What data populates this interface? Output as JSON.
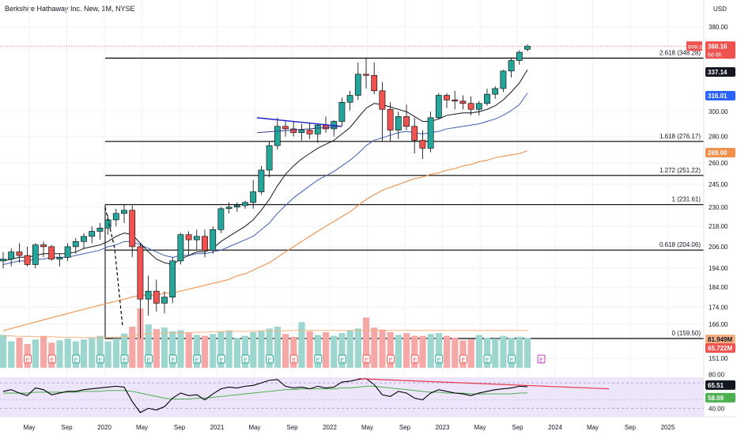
{
  "header": {
    "title": "Berkshire Hathaway Inc. New, 1M, NYSE",
    "currency": "USD"
  },
  "colors": {
    "up": "#26a69a",
    "down": "#ef5350",
    "ema_short": "#131722",
    "ema_mid": "#3f5fb5",
    "ema_long": "#f0904a",
    "fib": "#000000",
    "trend_upper": "#1e1ecc",
    "rsi": "#000000",
    "rsi_ma": "#4caf50",
    "divergence": "#e53950"
  },
  "price_axis": {
    "ticks": [
      "380.00",
      "300.00",
      "280.00",
      "260.00",
      "245.00",
      "230.00",
      "218.00",
      "206.00",
      "194.00",
      "184.00",
      "174.00",
      "166.00",
      "151.00"
    ],
    "tags": [
      {
        "label": "BRK.B",
        "value": "360.16",
        "sub": "6d 6h",
        "kind": "last"
      },
      {
        "value": "337.14",
        "kind": "ema_short"
      },
      {
        "value": "316.01",
        "kind": "ema_mid"
      },
      {
        "value": "269.00",
        "kind": "ema_long"
      },
      {
        "value": "81.949M",
        "kind": "vol_ma"
      },
      {
        "value": "65.722M",
        "kind": "vol"
      }
    ]
  },
  "rsi_axis": {
    "ticks": [
      "80.00",
      "40.00"
    ],
    "tags": [
      {
        "value": "65.51",
        "kind": "rsi"
      },
      {
        "value": "58.09",
        "kind": "rsi_ma"
      }
    ]
  },
  "time_axis": {
    "labels": [
      "May",
      "Sep",
      "2020",
      "May",
      "Sep",
      "2021",
      "May",
      "Sep",
      "2022",
      "May",
      "Sep",
      "2023",
      "May",
      "Sep",
      "2024",
      "May",
      "Sep",
      "2025"
    ]
  },
  "chart_data": {
    "type": "candlestick",
    "interval": "1M",
    "symbol": "BRK.B",
    "candles": [
      [
        198,
        203,
        194,
        199
      ],
      [
        199,
        205,
        195,
        203
      ],
      [
        203,
        208,
        197,
        201
      ],
      [
        201,
        206,
        195,
        196
      ],
      [
        196,
        208,
        194,
        207
      ],
      [
        207,
        209,
        200,
        206
      ],
      [
        206,
        207,
        198,
        199
      ],
      [
        199,
        202,
        195,
        200
      ],
      [
        200,
        208,
        198,
        206
      ],
      [
        206,
        211,
        202,
        209
      ],
      [
        209,
        214,
        205,
        212
      ],
      [
        212,
        218,
        208,
        215
      ],
      [
        215,
        220,
        210,
        217
      ],
      [
        217,
        225,
        213,
        222
      ],
      [
        222,
        229,
        218,
        226
      ],
      [
        226,
        232,
        220,
        228
      ],
      [
        228,
        231,
        200,
        206
      ],
      [
        206,
        208,
        159.5,
        178
      ],
      [
        178,
        190,
        170,
        182
      ],
      [
        182,
        188,
        172,
        176
      ],
      [
        176,
        182,
        171,
        179
      ],
      [
        179,
        200,
        176,
        198
      ],
      [
        198,
        214,
        196,
        213
      ],
      [
        213,
        215,
        201,
        210
      ],
      [
        210,
        216,
        204,
        212
      ],
      [
        212,
        216,
        200,
        204
      ],
      [
        204,
        218,
        202,
        216
      ],
      [
        216,
        230,
        214,
        229
      ],
      [
        229,
        233,
        226,
        230
      ],
      [
        230,
        233,
        227,
        231
      ],
      [
        231,
        234,
        229,
        233
      ],
      [
        233,
        248,
        229,
        240
      ],
      [
        240,
        258,
        238,
        255
      ],
      [
        255,
        276,
        250,
        273
      ],
      [
        273,
        295,
        270,
        288
      ],
      [
        288,
        293,
        280,
        286
      ],
      [
        286,
        292,
        280,
        283
      ],
      [
        283,
        290,
        277,
        285
      ],
      [
        285,
        291,
        278,
        282
      ],
      [
        282,
        290,
        275,
        289
      ],
      [
        289,
        296,
        283,
        286
      ],
      [
        286,
        293,
        280,
        292
      ],
      [
        292,
        312,
        288,
        308
      ],
      [
        308,
        318,
        301,
        314
      ],
      [
        314,
        344,
        310,
        333
      ],
      [
        333,
        348,
        320,
        332
      ],
      [
        332,
        344,
        315,
        318
      ],
      [
        318,
        326,
        276,
        302
      ],
      [
        302,
        308,
        276,
        285
      ],
      [
        285,
        300,
        278,
        296
      ],
      [
        296,
        306,
        285,
        288
      ],
      [
        288,
        295,
        267,
        277
      ],
      [
        277,
        285,
        263,
        271
      ],
      [
        271,
        300,
        268,
        295
      ],
      [
        295,
        316,
        294,
        314
      ],
      [
        314,
        316,
        303,
        310
      ],
      [
        310,
        318,
        302,
        309
      ],
      [
        309,
        314,
        302,
        307
      ],
      [
        307,
        313,
        297,
        302
      ],
      [
        302,
        309,
        297,
        307
      ],
      [
        307,
        320,
        305,
        315
      ],
      [
        315,
        322,
        311,
        320
      ],
      [
        320,
        337,
        317,
        336
      ],
      [
        336,
        348,
        330,
        346
      ],
      [
        346,
        356,
        342,
        354
      ],
      [
        357,
        362,
        355,
        360.16
      ]
    ],
    "ema_short": [
      198,
      199,
      200,
      200,
      201,
      202,
      202,
      202,
      202,
      203,
      205,
      206,
      207,
      209,
      212,
      214,
      213,
      208,
      203,
      199,
      197,
      196,
      199,
      201,
      203,
      203,
      205,
      209,
      212,
      215,
      218,
      222,
      228,
      235,
      244,
      252,
      258,
      263,
      267,
      271,
      274,
      277,
      282,
      287,
      295,
      303,
      307,
      306,
      304,
      302,
      300,
      296,
      292,
      292,
      294,
      297,
      298,
      299,
      299,
      300,
      302,
      305,
      310,
      317,
      325,
      337.14
    ],
    "ema_mid": [
      196,
      197,
      198,
      198,
      199,
      199,
      200,
      200,
      200,
      201,
      202,
      203,
      204,
      206,
      207,
      209,
      209,
      207,
      205,
      203,
      201,
      200,
      201,
      201,
      202,
      202,
      203,
      204,
      206,
      208,
      210,
      212,
      216,
      220,
      226,
      231,
      236,
      240,
      244,
      248,
      251,
      254,
      258,
      262,
      267,
      273,
      277,
      279,
      281,
      283,
      284,
      283,
      282,
      283,
      284,
      286,
      287,
      288,
      289,
      290,
      292,
      294,
      297,
      301,
      306,
      316.01
    ],
    "ema_long": [
      163,
      164,
      165,
      166,
      167,
      168,
      169,
      170,
      171,
      172,
      173,
      174,
      175,
      176,
      177,
      178,
      179,
      180,
      180,
      180,
      181,
      181,
      182,
      183,
      184,
      185,
      186,
      187,
      188,
      190,
      191,
      193,
      195,
      197,
      200,
      203,
      206,
      209,
      212,
      215,
      218,
      221,
      224,
      227,
      231,
      235,
      238,
      241,
      243,
      245,
      247,
      249,
      250,
      252,
      253,
      255,
      256,
      258,
      259,
      261,
      262,
      264,
      265,
      266,
      267,
      269
    ],
    "volume": [
      72,
      58,
      66,
      52,
      62,
      70,
      55,
      60,
      64,
      58,
      62,
      66,
      70,
      58,
      64,
      75,
      90,
      130,
      95,
      85,
      88,
      80,
      82,
      76,
      72,
      70,
      74,
      80,
      82,
      66,
      70,
      78,
      82,
      86,
      90,
      74,
      68,
      100,
      80,
      72,
      78,
      70,
      76,
      82,
      86,
      110,
      88,
      84,
      78,
      72,
      76,
      70,
      70,
      74,
      76,
      70,
      66,
      60,
      62,
      72,
      66,
      64,
      70,
      66,
      68,
      65.722
    ],
    "volume_ma": [
      70,
      70,
      69,
      69,
      68,
      68,
      68,
      67,
      67,
      67,
      66,
      66,
      66,
      66,
      67,
      68,
      70,
      73,
      74,
      75,
      76,
      76,
      77,
      77,
      78,
      78,
      79,
      79,
      80,
      80,
      80,
      80,
      81,
      81,
      81,
      81,
      82,
      82,
      82,
      82,
      82,
      82,
      82,
      82,
      82,
      82,
      82,
      82,
      82,
      82,
      82,
      82,
      82,
      82,
      82,
      82,
      82,
      82,
      82,
      82,
      82,
      82,
      82,
      82,
      82,
      81.949
    ],
    "rsi": [
      60,
      62,
      58,
      55,
      64,
      62,
      56,
      58,
      60,
      60,
      62,
      63,
      64,
      65,
      66,
      65,
      48,
      35,
      40,
      38,
      42,
      52,
      58,
      55,
      56,
      50,
      57,
      63,
      65,
      64,
      66,
      67,
      70,
      73,
      74,
      66,
      64,
      65,
      63,
      66,
      64,
      65,
      71,
      72,
      74,
      75,
      68,
      56,
      54,
      60,
      58,
      52,
      50,
      58,
      62,
      60,
      58,
      57,
      55,
      58,
      60,
      62,
      63,
      64,
      66,
      65.51
    ],
    "rsi_ma": [
      58,
      58,
      58,
      58,
      59,
      59,
      59,
      59,
      59,
      59,
      60,
      60,
      60,
      61,
      61,
      61,
      60,
      58,
      56,
      54,
      52,
      51,
      51,
      51,
      52,
      52,
      53,
      54,
      55,
      56,
      57,
      58,
      59,
      60,
      61,
      62,
      62,
      63,
      63,
      63,
      63,
      63,
      64,
      64,
      65,
      66,
      66,
      65,
      64,
      63,
      62,
      61,
      60,
      59,
      59,
      58,
      58,
      58,
      57,
      57,
      57,
      57,
      57,
      57,
      58,
      58.09
    ],
    "fib_levels": [
      {
        "ratio": "0",
        "price": 159.5,
        "label": "0 (159.50)"
      },
      {
        "ratio": "0.618",
        "price": 204.06,
        "label": "0.618 (204.06)"
      },
      {
        "ratio": "1",
        "price": 231.61,
        "label": "1 (231.61)"
      },
      {
        "ratio": "1.272",
        "price": 251.22,
        "label": "1.272 (251.22)"
      },
      {
        "ratio": "1.618",
        "price": 276.17,
        "label": "1.618 (276.17)"
      },
      {
        "ratio": "2.618",
        "price": 348.28,
        "label": "2.618 (348.28)"
      }
    ],
    "earnings_markers": "E",
    "rsi_range": [
      30,
      85
    ],
    "price_range": [
      148,
      385
    ]
  }
}
